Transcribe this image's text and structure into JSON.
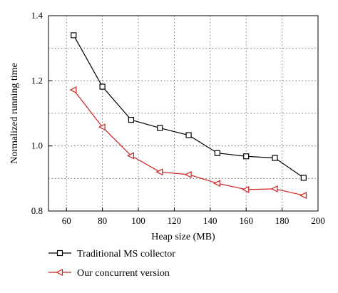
{
  "chart_data": {
    "type": "line",
    "xlabel": "Heap size (MB)",
    "ylabel": "Normalized running time",
    "xlim": [
      50,
      200
    ],
    "ylim": [
      0.8,
      1.4
    ],
    "xticks": [
      60,
      80,
      100,
      120,
      140,
      160,
      180,
      200
    ],
    "yticks": [
      0.8,
      1.0,
      1.2,
      1.4
    ],
    "ytick_labels": [
      "0.8",
      "1.0",
      "1.2",
      "1.4"
    ],
    "grid": "dotted",
    "legend_position": "bottom",
    "series": [
      {
        "name": "Traditional MS collector",
        "color": "#000000",
        "marker": "square",
        "x": [
          64,
          80,
          96,
          112,
          128,
          144,
          160,
          176,
          192
        ],
        "y": [
          1.34,
          1.182,
          1.08,
          1.055,
          1.033,
          0.978,
          0.968,
          0.963,
          0.902
        ]
      },
      {
        "name": "Our concurrent version",
        "color": "#cc2222",
        "marker": "triangle-left",
        "x": [
          64,
          80,
          96,
          112,
          128,
          144,
          160,
          176,
          192
        ],
        "y": [
          1.172,
          1.058,
          0.97,
          0.92,
          0.912,
          0.885,
          0.866,
          0.868,
          0.848
        ]
      }
    ]
  }
}
